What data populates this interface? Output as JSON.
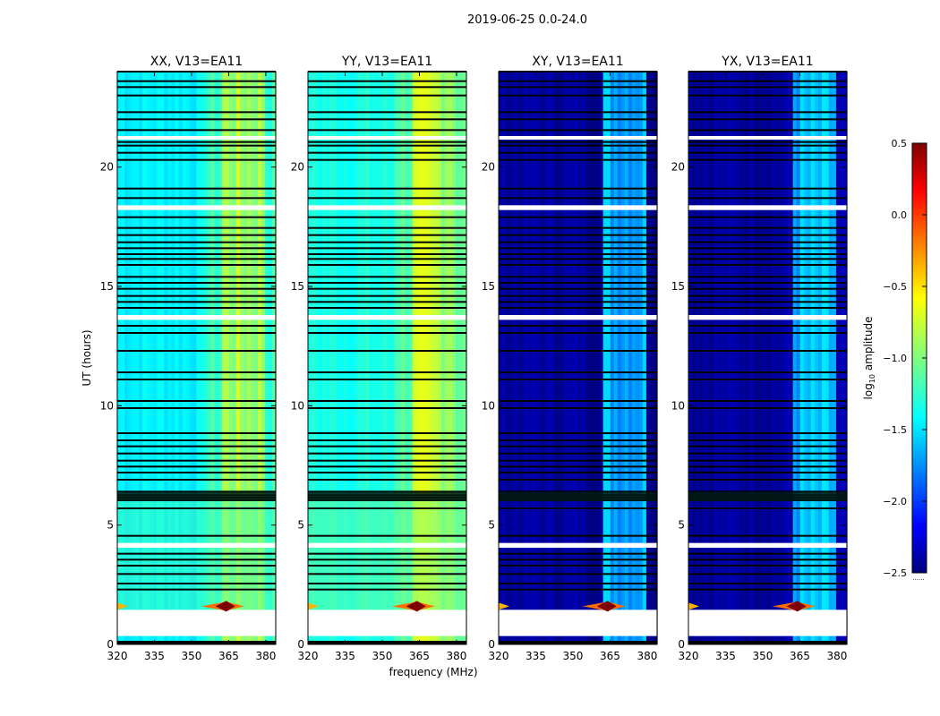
{
  "figure": {
    "suptitle": "2019-06-25 0.0-24.0",
    "xlabel": "frequency (MHz)",
    "ylabel": "UT (hours)",
    "colorbar_label": "log",
    "colorbar_label_sub": "10",
    "colorbar_label_rest": " amplitude",
    "colorbar_dots": "......"
  },
  "colors": {
    "colormap": [
      "#00007f",
      "#0000ff",
      "#007fff",
      "#00ffff",
      "#7fff7f",
      "#ffff00",
      "#ff7f00",
      "#ff0000",
      "#7f0000"
    ],
    "background": "#ffffff",
    "flag_dark": "#000000",
    "flag_white": "#ffffff"
  },
  "chart_data": {
    "type": "heatmap",
    "x_ticks": [
      320,
      335,
      350,
      365,
      380
    ],
    "x_tick_labels": [
      "320",
      "335",
      "350",
      "365",
      "380"
    ],
    "xlim": [
      320,
      384
    ],
    "y_ticks": [
      0,
      5,
      10,
      15,
      20
    ],
    "y_tick_labels": [
      "0",
      "5",
      "10",
      "15",
      "20"
    ],
    "ylim": [
      0,
      24
    ],
    "colorbar": {
      "range": [
        -2.5,
        0.5
      ],
      "ticks": [
        0.5,
        0.0,
        -0.5,
        -1.0,
        -1.5,
        -2.0,
        -2.5
      ],
      "tick_labels": [
        "0.5",
        "0.0",
        "−0.5",
        "−1.0",
        "−1.5",
        "−2.0",
        "−2.5"
      ]
    },
    "panels": [
      {
        "title": "XX, V13=EA11",
        "kind": "parallel",
        "base_values": {
          "low_band": -1.4,
          "mid_band": -1.2,
          "rfi_band": -0.9
        }
      },
      {
        "title": "YY, V13=EA11",
        "kind": "parallel",
        "base_values": {
          "low_band": -1.3,
          "mid_band": -1.1,
          "rfi_band": -0.85
        }
      },
      {
        "title": "XY, V13=EA11",
        "kind": "cross",
        "base_values": {
          "low_band": -2.4,
          "mid_band": -2.4,
          "rfi_band": -1.6
        }
      },
      {
        "title": "YX, V13=EA11",
        "kind": "cross",
        "base_values": {
          "low_band": -2.4,
          "mid_band": -2.4,
          "rfi_band": -1.6
        }
      }
    ],
    "white_gaps_hours": [
      0.35,
      1.45,
      4.05,
      4.25,
      13.6,
      13.8,
      18.2,
      18.4,
      21.15,
      21.3
    ],
    "dark_flags_hours": [
      0.05,
      0.75,
      2.3,
      2.55,
      2.95,
      3.3,
      3.55,
      3.8,
      4.55,
      5.7,
      6.05,
      6.15,
      6.25,
      6.4,
      6.9,
      7.2,
      7.45,
      7.7,
      8.0,
      8.3,
      8.55,
      8.85,
      9.9,
      10.2,
      11.1,
      11.4,
      12.3,
      13.05,
      13.35,
      14.1,
      14.35,
      14.6,
      14.9,
      15.15,
      15.4,
      15.9,
      16.15,
      16.35,
      16.6,
      16.85,
      17.15,
      17.45,
      17.9,
      18.7,
      19.1,
      20.3,
      20.6,
      20.9,
      21.05,
      21.55,
      22.0,
      22.3,
      23.0,
      23.35,
      23.6,
      24.0
    ],
    "rfi_burst": {
      "center_mhz": 364,
      "ut_hours": 1.6,
      "peak_value": 0.5
    }
  }
}
